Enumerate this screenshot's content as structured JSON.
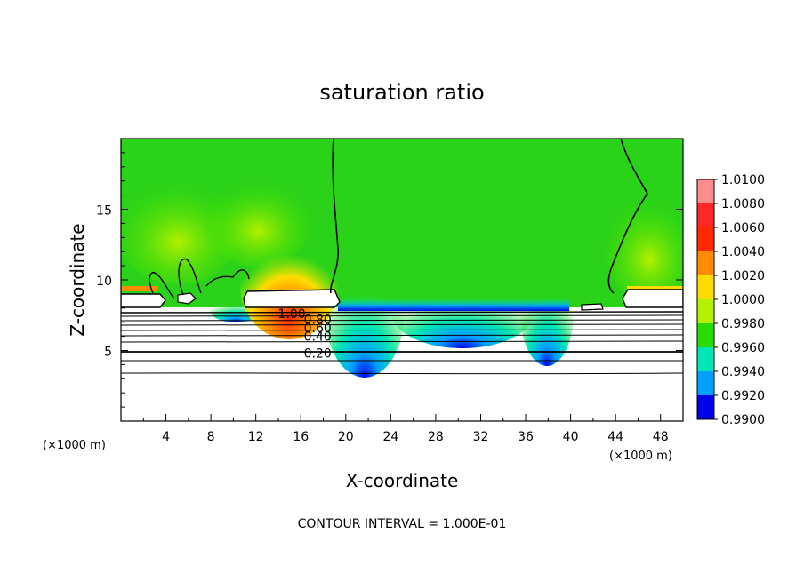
{
  "chart_data": {
    "type": "contour",
    "title": "saturation ratio",
    "xlabel": "X-coordinate",
    "ylabel": "Z-coordinate",
    "x_unit_left": "(×1000 m)",
    "x_unit_right": "(×1000 m)",
    "xlim": [
      0,
      50
    ],
    "ylim": [
      0,
      20
    ],
    "x_ticks": [
      "4",
      "8",
      "12",
      "16",
      "20",
      "24",
      "28",
      "32",
      "36",
      "40",
      "44",
      "48"
    ],
    "y_ticks": [
      "5",
      "10",
      "15"
    ],
    "contour_interval_text": "CONTOUR INTERVAL = 1.000E-01",
    "contour_labels": [
      {
        "text": "1.00",
        "x": 15.2,
        "z": 7.6
      },
      {
        "text": "0.80",
        "x": 17.5,
        "z": 7.2
      },
      {
        "text": "0.60",
        "x": 17.5,
        "z": 6.6
      },
      {
        "text": "0.40",
        "x": 17.5,
        "z": 6.0
      },
      {
        "text": "0.20",
        "x": 17.5,
        "z": 4.8
      }
    ],
    "colorbar": {
      "levels": [
        "1.0100",
        "1.0080",
        "1.0060",
        "1.0040",
        "1.0020",
        "1.0000",
        "0.9980",
        "0.9960",
        "0.9940",
        "0.9920",
        "0.9900"
      ],
      "colors": [
        "#ff8c8c",
        "#ff2828",
        "#ff2800",
        "#ff8c00",
        "#ffdc00",
        "#b4f000",
        "#28dc00",
        "#00e6b4",
        "#00a0ff",
        "#0000e6",
        "#28008c"
      ]
    },
    "field_base_color": "#2ad21a"
  }
}
